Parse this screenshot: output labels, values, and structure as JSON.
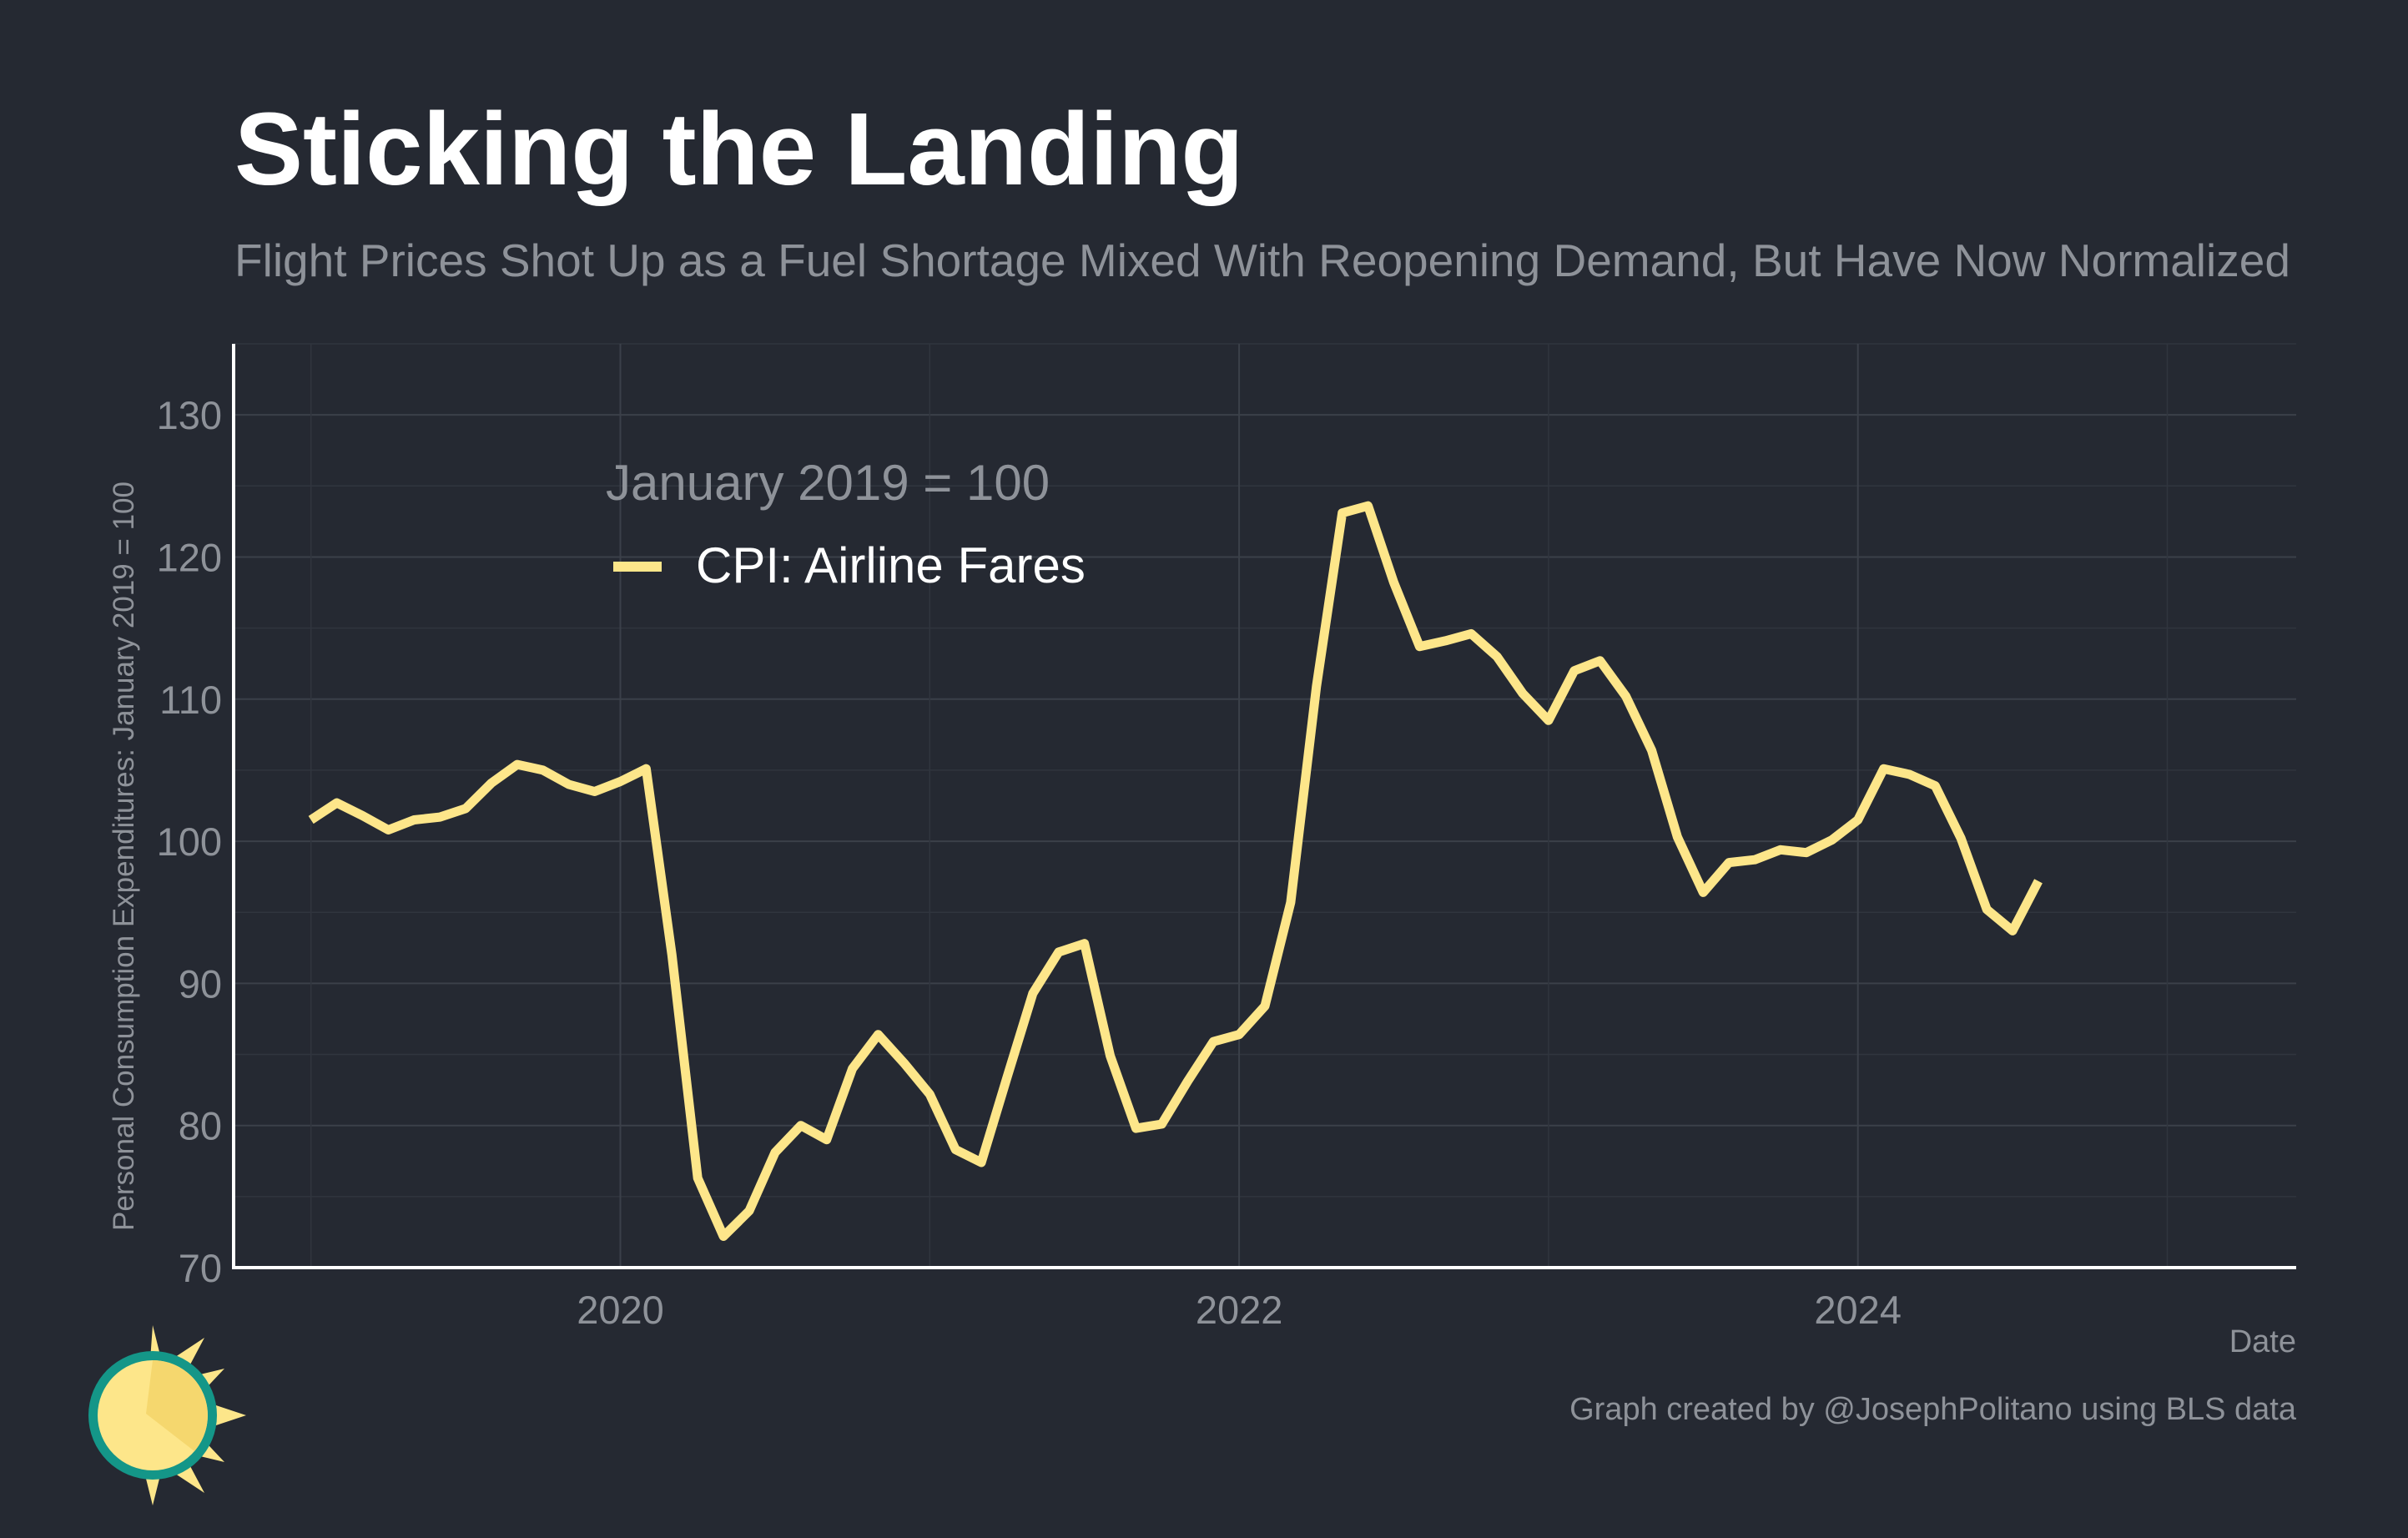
{
  "chart_data": {
    "type": "line",
    "title": "Sticking the Landing",
    "subtitle": "Flight Prices Shot Up as a Fuel Shortage Mixed With Reopening Demand, But Have Now Normalized",
    "xlabel": "Date",
    "ylabel": "Personal Consumption Expenditures: January 2019 = 100",
    "legend_title": "January 2019 = 100",
    "legend_placement": "top-left",
    "caption": "Graph created by @JosephPolitano using BLS data",
    "grid": true,
    "xlim": [
      "2018-10",
      "2025-06"
    ],
    "ylim": [
      70,
      135
    ],
    "x_ticks": [
      "2020",
      "2022",
      "2024"
    ],
    "y_ticks": [
      70,
      80,
      90,
      100,
      110,
      120,
      130
    ],
    "colors": {
      "background": "#252932",
      "grid": "#3b4049",
      "axis": "#ffffff",
      "series": "#fde68a"
    },
    "series": [
      {
        "name": "CPI: Airline Fares",
        "x": [
          "2019-01",
          "2019-02",
          "2019-03",
          "2019-04",
          "2019-05",
          "2019-06",
          "2019-07",
          "2019-08",
          "2019-09",
          "2019-10",
          "2019-11",
          "2019-12",
          "2020-01",
          "2020-02",
          "2020-03",
          "2020-04",
          "2020-05",
          "2020-06",
          "2020-07",
          "2020-08",
          "2020-09",
          "2020-10",
          "2020-11",
          "2020-12",
          "2021-01",
          "2021-02",
          "2021-03",
          "2021-04",
          "2021-05",
          "2021-06",
          "2021-07",
          "2021-08",
          "2021-09",
          "2021-10",
          "2021-11",
          "2021-12",
          "2022-01",
          "2022-02",
          "2022-03",
          "2022-04",
          "2022-05",
          "2022-06",
          "2022-07",
          "2022-08",
          "2022-09",
          "2022-10",
          "2022-11",
          "2022-12",
          "2023-01",
          "2023-02",
          "2023-03",
          "2023-04",
          "2023-05",
          "2023-06",
          "2023-07",
          "2023-08",
          "2023-09",
          "2023-10",
          "2023-11",
          "2023-12",
          "2024-01",
          "2024-02",
          "2024-03",
          "2024-04",
          "2024-05",
          "2024-06",
          "2024-07",
          "2024-08"
        ],
        "values": [
          101.5,
          102.7,
          101.8,
          100.8,
          101.5,
          101.7,
          102.3,
          104.1,
          105.4,
          105.0,
          104.0,
          103.5,
          104.2,
          105.1,
          92.0,
          76.3,
          72.2,
          74.0,
          78.1,
          80.0,
          79.0,
          84.0,
          86.4,
          84.4,
          82.2,
          78.3,
          77.4,
          83.4,
          89.3,
          92.2,
          92.8,
          84.9,
          79.8,
          80.1,
          83.1,
          85.9,
          86.4,
          88.4,
          95.7,
          110.9,
          123.1,
          123.6,
          118.2,
          113.7,
          114.1,
          114.6,
          113.0,
          110.4,
          108.5,
          112.0,
          112.7,
          110.2,
          106.4,
          100.3,
          96.4,
          98.5,
          98.7,
          99.4,
          99.2,
          100.1,
          101.5,
          105.1,
          104.7,
          103.9,
          100.2,
          95.2,
          93.7,
          97.2
        ]
      }
    ]
  }
}
